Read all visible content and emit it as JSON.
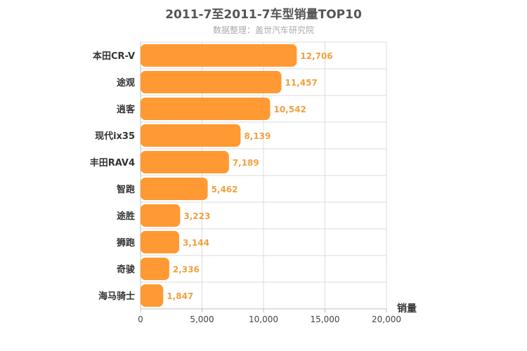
{
  "chart_data": {
    "type": "bar",
    "orientation": "horizontal",
    "title": "2011-7至2011-7车型销量TOP10",
    "subtitle": "数据整理：盖世汽车研究院",
    "categories": [
      "本田CR-V",
      "途观",
      "逍客",
      "现代ix35",
      "丰田RAV4",
      "智跑",
      "途胜",
      "狮跑",
      "奇骏",
      "海马骑士"
    ],
    "values": [
      12706,
      11457,
      10542,
      8139,
      7189,
      5462,
      3223,
      3144,
      2336,
      1847
    ],
    "value_labels": [
      "12,706",
      "11,457",
      "10,542",
      "8,139",
      "7,189",
      "5,462",
      "3,223",
      "3,144",
      "2,336",
      "1,847"
    ],
    "xlabel": "销量",
    "xlim": [
      0,
      20000
    ],
    "x_ticks": [
      0,
      5000,
      10000,
      15000,
      20000
    ],
    "x_tick_labels": [
      "0",
      "5,000",
      "10,000",
      "15,000",
      "20,000"
    ],
    "bar_color": "#ff9933",
    "label_color": "#f0a040",
    "grid": true,
    "legend": "none"
  }
}
